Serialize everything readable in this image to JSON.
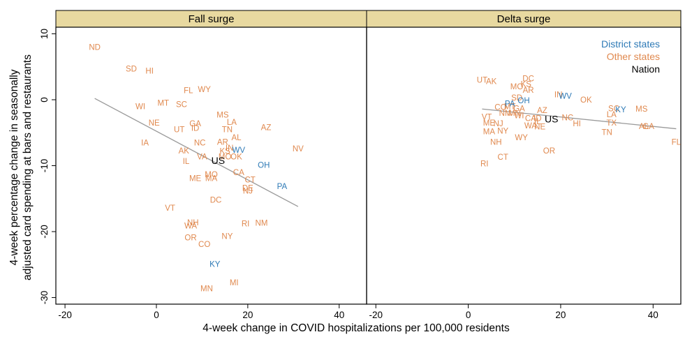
{
  "chart_data": {
    "type": "scatter",
    "xlabel": "4-week change in COVID hospitalizations per 100,000 residents",
    "ylabel_lines": [
      "4-week percentage change in seasonally",
      "adjusted card spending at bars and restaurants"
    ],
    "xlim": [
      -22,
      46
    ],
    "ylim": [
      -31,
      11
    ],
    "x_ticks": [
      -20,
      0,
      20,
      40
    ],
    "y_ticks": [
      10,
      0,
      -10,
      -20,
      -30
    ],
    "colors": {
      "district": "#2e7ab6",
      "other": "#e0894f",
      "nation": "#000000",
      "strip": "#e8d9a0",
      "fit": "#999999"
    },
    "legend": [
      {
        "label": "District states",
        "group": "district"
      },
      {
        "label": "Other states",
        "group": "other"
      },
      {
        "label": "Nation",
        "group": "nation"
      }
    ],
    "panels": [
      {
        "title": "Fall surge",
        "fit_line": [
          [
            -13.5,
            0.2
          ],
          [
            31,
            -16.2
          ]
        ],
        "points": [
          {
            "label": "ND",
            "x": -13.5,
            "y": 8.0,
            "group": "other"
          },
          {
            "label": "SD",
            "x": -5.5,
            "y": 4.7,
            "group": "other"
          },
          {
            "label": "HI",
            "x": -1.5,
            "y": 4.4,
            "group": "other"
          },
          {
            "label": "WI",
            "x": -3.5,
            "y": -1.0,
            "group": "other"
          },
          {
            "label": "MT",
            "x": 1.5,
            "y": -0.5,
            "group": "other"
          },
          {
            "label": "SC",
            "x": 5.5,
            "y": -0.7,
            "group": "other"
          },
          {
            "label": "FL",
            "x": 7.0,
            "y": 1.4,
            "group": "other"
          },
          {
            "label": "WY",
            "x": 10.5,
            "y": 1.6,
            "group": "other"
          },
          {
            "label": "NE",
            "x": -0.5,
            "y": -3.5,
            "group": "other"
          },
          {
            "label": "UT",
            "x": 5.0,
            "y": -4.5,
            "group": "other"
          },
          {
            "label": "GA",
            "x": 8.5,
            "y": -3.6,
            "group": "other"
          },
          {
            "label": "ID",
            "x": 8.5,
            "y": -4.3,
            "group": "other"
          },
          {
            "label": "MS",
            "x": 14.5,
            "y": -2.3,
            "group": "other"
          },
          {
            "label": "LA",
            "x": 16.5,
            "y": -3.4,
            "group": "other"
          },
          {
            "label": "TN",
            "x": 15.5,
            "y": -4.5,
            "group": "other"
          },
          {
            "label": "AZ",
            "x": 24.0,
            "y": -4.2,
            "group": "other"
          },
          {
            "label": "AL",
            "x": 17.5,
            "y": -5.7,
            "group": "other"
          },
          {
            "label": "IA",
            "x": -2.5,
            "y": -6.5,
            "group": "other"
          },
          {
            "label": "NC",
            "x": 9.5,
            "y": -6.5,
            "group": "other"
          },
          {
            "label": "AR",
            "x": 14.5,
            "y": -6.4,
            "group": "other"
          },
          {
            "label": "IN",
            "x": 16.0,
            "y": -7.3,
            "group": "other"
          },
          {
            "label": "KS",
            "x": 15.0,
            "y": -7.8,
            "group": "other"
          },
          {
            "label": "NV",
            "x": 31.0,
            "y": -7.4,
            "group": "other"
          },
          {
            "label": "AK",
            "x": 6.0,
            "y": -7.7,
            "group": "other"
          },
          {
            "label": "VA",
            "x": 10.0,
            "y": -8.6,
            "group": "other"
          },
          {
            "label": "MO",
            "x": 15.0,
            "y": -8.6,
            "group": "other"
          },
          {
            "label": "OK",
            "x": 17.5,
            "y": -8.6,
            "group": "other"
          },
          {
            "label": "IL",
            "x": 6.5,
            "y": -9.3,
            "group": "other"
          },
          {
            "label": "MO",
            "x": 12.0,
            "y": -11.3,
            "group": "other"
          },
          {
            "label": "ME",
            "x": 8.5,
            "y": -11.9,
            "group": "other"
          },
          {
            "label": "MA",
            "x": 12.0,
            "y": -11.9,
            "group": "other"
          },
          {
            "label": "CA",
            "x": 18.0,
            "y": -11.0,
            "group": "other"
          },
          {
            "label": "CT",
            "x": 20.5,
            "y": -12.1,
            "group": "other"
          },
          {
            "label": "DE",
            "x": 20.0,
            "y": -13.4,
            "group": "other"
          },
          {
            "label": "NJ",
            "x": 20.0,
            "y": -13.8,
            "group": "other"
          },
          {
            "label": "DC",
            "x": 13.0,
            "y": -15.2,
            "group": "other"
          },
          {
            "label": "VT",
            "x": 3.0,
            "y": -16.4,
            "group": "other"
          },
          {
            "label": "NH",
            "x": 8.0,
            "y": -18.6,
            "group": "other"
          },
          {
            "label": "WA",
            "x": 7.5,
            "y": -19.1,
            "group": "other"
          },
          {
            "label": "RI",
            "x": 19.5,
            "y": -18.8,
            "group": "other"
          },
          {
            "label": "NM",
            "x": 23.0,
            "y": -18.7,
            "group": "other"
          },
          {
            "label": "OR",
            "x": 7.5,
            "y": -20.9,
            "group": "other"
          },
          {
            "label": "NY",
            "x": 15.5,
            "y": -20.7,
            "group": "other"
          },
          {
            "label": "CO",
            "x": 10.5,
            "y": -21.9,
            "group": "other"
          },
          {
            "label": "MI",
            "x": 17.0,
            "y": -27.7,
            "group": "other"
          },
          {
            "label": "MN",
            "x": 11.0,
            "y": -28.6,
            "group": "other"
          },
          {
            "label": "WV",
            "x": 18.0,
            "y": -7.6,
            "group": "district"
          },
          {
            "label": "OH",
            "x": 23.5,
            "y": -9.9,
            "group": "district"
          },
          {
            "label": "PA",
            "x": 27.5,
            "y": -13.1,
            "group": "district"
          },
          {
            "label": "KY",
            "x": 12.8,
            "y": -24.9,
            "group": "district"
          },
          {
            "label": "US",
            "x": 13.5,
            "y": -9.3,
            "group": "nation"
          }
        ]
      },
      {
        "title": "Delta surge",
        "fit_line": [
          [
            3,
            -1.4
          ],
          [
            45,
            -4.4
          ]
        ],
        "points": [
          {
            "label": "UT",
            "x": 3.0,
            "y": 3.0,
            "group": "other"
          },
          {
            "label": "AK",
            "x": 5.0,
            "y": 2.8,
            "group": "other"
          },
          {
            "label": "DC",
            "x": 13.0,
            "y": 3.2,
            "group": "other"
          },
          {
            "label": "KS",
            "x": 12.5,
            "y": 2.4,
            "group": "other"
          },
          {
            "label": "MO",
            "x": 10.5,
            "y": 2.0,
            "group": "other"
          },
          {
            "label": "AR",
            "x": 13.0,
            "y": 1.5,
            "group": "other"
          },
          {
            "label": "SD",
            "x": 10.5,
            "y": 0.3,
            "group": "other"
          },
          {
            "label": "CO",
            "x": 7.0,
            "y": -1.1,
            "group": "other"
          },
          {
            "label": "MT",
            "x": 9.0,
            "y": -1.0,
            "group": "other"
          },
          {
            "label": "GA",
            "x": 11.0,
            "y": -1.3,
            "group": "other"
          },
          {
            "label": "NM",
            "x": 8.0,
            "y": -2.0,
            "group": "other"
          },
          {
            "label": "MN",
            "x": 10.0,
            "y": -2.0,
            "group": "other"
          },
          {
            "label": "VT",
            "x": 4.0,
            "y": -2.6,
            "group": "other"
          },
          {
            "label": "WI",
            "x": 11.0,
            "y": -2.4,
            "group": "other"
          },
          {
            "label": "AZ",
            "x": 16.0,
            "y": -1.6,
            "group": "other"
          },
          {
            "label": "CA",
            "x": 13.5,
            "y": -2.8,
            "group": "other"
          },
          {
            "label": "ID",
            "x": 15.0,
            "y": -2.8,
            "group": "other"
          },
          {
            "label": "ME",
            "x": 4.5,
            "y": -3.5,
            "group": "other"
          },
          {
            "label": "NJ",
            "x": 6.5,
            "y": -3.6,
            "group": "other"
          },
          {
            "label": "WA",
            "x": 13.5,
            "y": -3.9,
            "group": "other"
          },
          {
            "label": "NE",
            "x": 15.5,
            "y": -4.1,
            "group": "other"
          },
          {
            "label": "IL",
            "x": 15.0,
            "y": -3.3,
            "group": "other"
          },
          {
            "label": "NC",
            "x": 21.5,
            "y": -2.7,
            "group": "other"
          },
          {
            "label": "HI",
            "x": 23.5,
            "y": -3.6,
            "group": "other"
          },
          {
            "label": "OK",
            "x": 25.5,
            "y": 0.0,
            "group": "other"
          },
          {
            "label": "SC",
            "x": 31.5,
            "y": -1.3,
            "group": "other"
          },
          {
            "label": "LA",
            "x": 31.0,
            "y": -2.2,
            "group": "other"
          },
          {
            "label": "TX",
            "x": 31.0,
            "y": -3.5,
            "group": "other"
          },
          {
            "label": "TN",
            "x": 30.0,
            "y": -4.9,
            "group": "other"
          },
          {
            "label": "MS",
            "x": 37.5,
            "y": -1.4,
            "group": "other"
          },
          {
            "label": "AL",
            "x": 38.0,
            "y": -4.0,
            "group": "other"
          },
          {
            "label": "GA",
            "x": 39.0,
            "y": -4.0,
            "group": "other"
          },
          {
            "label": "FL",
            "x": 45.0,
            "y": -6.4,
            "group": "other"
          },
          {
            "label": "MA",
            "x": 4.5,
            "y": -4.8,
            "group": "other"
          },
          {
            "label": "NY",
            "x": 7.5,
            "y": -4.7,
            "group": "other"
          },
          {
            "label": "WY",
            "x": 11.5,
            "y": -5.7,
            "group": "other"
          },
          {
            "label": "NH",
            "x": 6.0,
            "y": -6.4,
            "group": "other"
          },
          {
            "label": "OR",
            "x": 17.5,
            "y": -7.7,
            "group": "other"
          },
          {
            "label": "CT",
            "x": 7.5,
            "y": -8.7,
            "group": "other"
          },
          {
            "label": "RI",
            "x": 3.5,
            "y": -9.7,
            "group": "other"
          },
          {
            "label": "IN",
            "x": 19.5,
            "y": 0.8,
            "group": "other"
          },
          {
            "label": "WV",
            "x": 21.0,
            "y": 0.6,
            "group": "district"
          },
          {
            "label": "OH",
            "x": 12.0,
            "y": -0.1,
            "group": "district"
          },
          {
            "label": "PA",
            "x": 9.0,
            "y": -0.6,
            "group": "district"
          },
          {
            "label": "KY",
            "x": 33.0,
            "y": -1.5,
            "group": "district"
          },
          {
            "label": "US",
            "x": 18.0,
            "y": -3.0,
            "group": "nation"
          }
        ]
      }
    ]
  }
}
